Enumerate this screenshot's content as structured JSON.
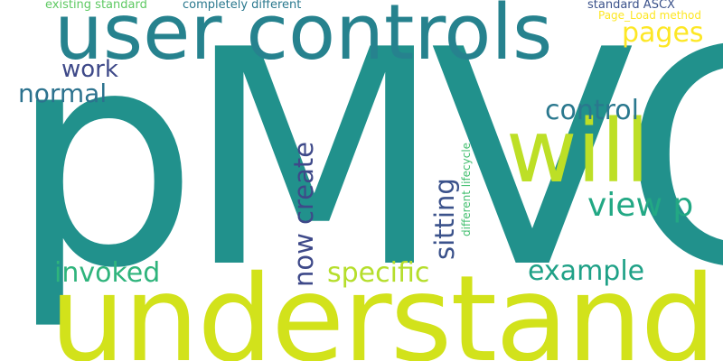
{
  "words": {
    "pmvc": {
      "text": "pMVC",
      "color": "#21918c"
    },
    "understand": {
      "text": "understand",
      "color": "#d2e21b"
    },
    "user_controls": {
      "text": "user controls",
      "color": "#26828e"
    },
    "will": {
      "text": "will",
      "color": "#bddf26"
    },
    "pages": {
      "text": "pages",
      "color": "#fde725"
    },
    "work": {
      "text": "work",
      "color": "#3e4989"
    },
    "normal": {
      "text": "normal",
      "color": "#2c728e"
    },
    "control": {
      "text": "control",
      "color": "#2a788e"
    },
    "view_p": {
      "text": "view p",
      "color": "#22a884"
    },
    "invoked": {
      "text": "invoked",
      "color": "#2fb47c"
    },
    "specific": {
      "text": "specific",
      "color": "#b5de2b"
    },
    "example": {
      "text": "example",
      "color": "#1fa187"
    },
    "existing_standard": {
      "text": "existing standard",
      "color": "#5ec962"
    },
    "completely_different": {
      "text": "completely different",
      "color": "#2a788e"
    },
    "standard_ascx": {
      "text": "standard ASCX",
      "color": "#3b528b"
    },
    "page_load_method": {
      "text": "Page_Load method",
      "color": "#fde725"
    },
    "now_create": {
      "text": "now create",
      "color": "#3e4989"
    },
    "sitting": {
      "text": "sitting",
      "color": "#3b528b"
    },
    "different_lifecycle": {
      "text": "different lifecycle",
      "color": "#44bf70"
    }
  }
}
